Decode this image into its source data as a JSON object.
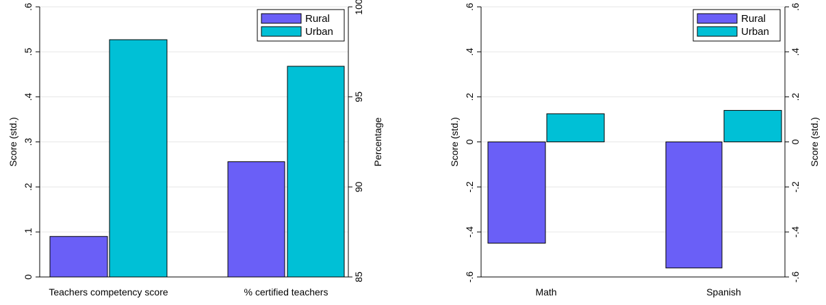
{
  "chart_data": [
    {
      "type": "bar",
      "categories": [
        "Teachers competency score",
        "% certified teachers"
      ],
      "series": [
        {
          "name": "Rural",
          "values": [
            0.09,
            91.4
          ],
          "color": "#6a5ff7"
        },
        {
          "name": "Urban",
          "values": [
            0.527,
            96.7
          ],
          "color": "#00c0d6"
        }
      ],
      "left_axis": {
        "label": "Score (std.)",
        "range": [
          0,
          0.6
        ],
        "ticks": [
          0,
          0.1,
          0.2,
          0.3,
          0.4,
          0.5,
          0.6
        ],
        "tick_labels": [
          "0",
          ".1",
          ".2",
          ".3",
          ".4",
          ".5",
          ".6"
        ]
      },
      "right_axis": {
        "label": "Percentage",
        "range": [
          85,
          100
        ],
        "ticks": [
          85,
          90,
          95,
          100
        ],
        "tick_labels": [
          "85",
          "90",
          "95",
          "100"
        ]
      },
      "value_axis_by_category": [
        "left",
        "right"
      ],
      "legend": "top-right",
      "grid": true
    },
    {
      "type": "bar",
      "categories": [
        "Math",
        "Spanish"
      ],
      "series": [
        {
          "name": "Rural",
          "values": [
            -0.45,
            -0.56
          ],
          "color": "#6a5ff7"
        },
        {
          "name": "Urban",
          "values": [
            0.125,
            0.14
          ],
          "color": "#00c0d6"
        }
      ],
      "left_axis": {
        "label": "Score (std.)",
        "range": [
          -0.6,
          0.6
        ],
        "ticks": [
          -0.6,
          -0.4,
          -0.2,
          0,
          0.2,
          0.4,
          0.6
        ],
        "tick_labels": [
          "-.6",
          "-.4",
          "-.2",
          "0",
          ".2",
          ".4",
          ".6"
        ]
      },
      "right_axis": {
        "label": "Score (std.)",
        "range": [
          -0.6,
          0.6
        ],
        "ticks": [
          -0.6,
          -0.4,
          -0.2,
          0,
          0.2,
          0.4,
          0.6
        ],
        "tick_labels": [
          "-.6",
          "-.4",
          "-.2",
          "0",
          ".2",
          ".4",
          ".6"
        ]
      },
      "value_axis_by_category": [
        "left",
        "left"
      ],
      "legend": "top-right",
      "grid": true
    }
  ]
}
